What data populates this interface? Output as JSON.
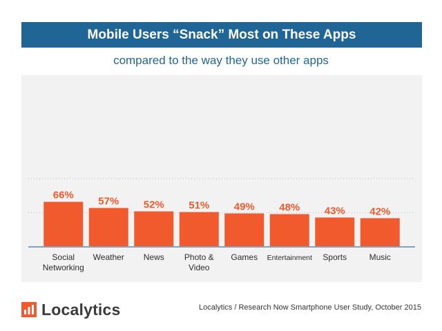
{
  "header": {
    "title": "Mobile Users “Snack” Most on These Apps",
    "subtitle": "compared to the way they use other apps"
  },
  "footer": {
    "brand": "Localytics",
    "source": "Localytics / Research Now Smartphone User Study, October 2015"
  },
  "colors": {
    "title_bar": "#1f6596",
    "subtitle_text": "#1f6596",
    "bar": "#f05a2c",
    "value_label": "#f05a2c",
    "baseline": "#7aa3c4",
    "gridline": "#b9b9b9",
    "logo": "#f05a2c"
  },
  "icons": {
    "logo": "localytics-bars-logo"
  },
  "chart_data": {
    "type": "bar",
    "title": "",
    "xlabel": "",
    "ylabel": "",
    "categories": [
      "Social\nNetworking",
      "Weather",
      "News",
      "Photo &\nVideo",
      "Games",
      "Entertainment",
      "Sports",
      "Music"
    ],
    "values": [
      66,
      57,
      52,
      51,
      49,
      48,
      43,
      42
    ],
    "data_labels": [
      "66%",
      "57%",
      "52%",
      "51%",
      "49%",
      "48%",
      "43%",
      "42%"
    ],
    "unit": "%",
    "ylim": [
      0,
      100
    ],
    "gridlines": [
      50,
      100
    ],
    "grid": true,
    "legend": "none"
  }
}
